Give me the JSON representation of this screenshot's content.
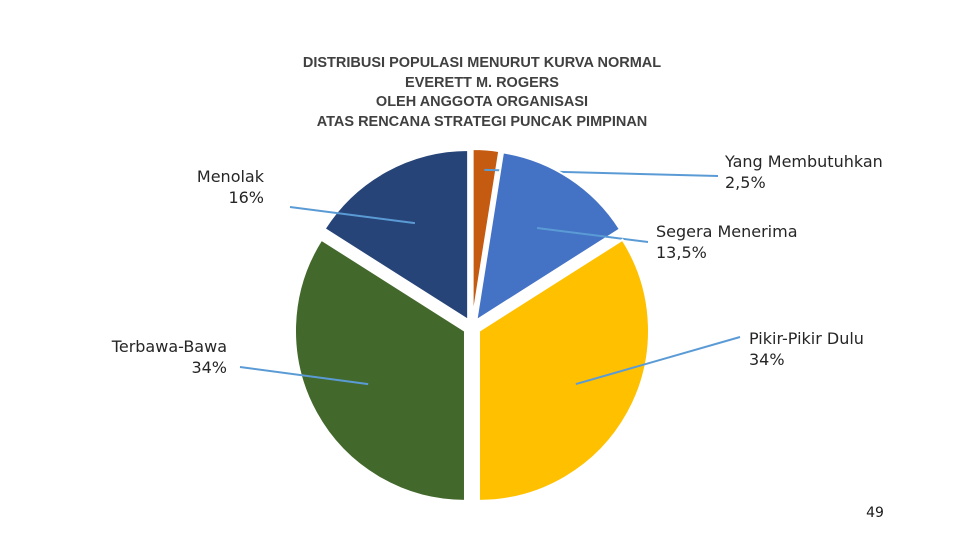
{
  "chart_data": {
    "type": "pie",
    "title_lines": [
      "DISTRIBUSI POPULASI MENURUT KURVA NORMAL",
      "EVERETT M. ROGERS",
      "OLEH ANGGOTA ORGANISASI",
      "ATAS RENCANA STRATEGI PUNCAK PIMPINAN"
    ],
    "slices": [
      {
        "name": "Yang Membutuhkan",
        "value": 2.5,
        "pct_label": "2,5%",
        "color": "#c55a11"
      },
      {
        "name": "Segera Menerima",
        "value": 13.5,
        "pct_label": "13,5%",
        "color": "#4472c4"
      },
      {
        "name": "Pikir-Pikir Dulu",
        "value": 34,
        "pct_label": "34%",
        "color": "#ffc000"
      },
      {
        "name": "Terbawa-Bawa",
        "value": 34,
        "pct_label": "34%",
        "color": "#43682b"
      },
      {
        "name": "Menolak",
        "value": 16,
        "pct_label": "16%",
        "color": "#264478"
      }
    ],
    "leader_line_color": "#5b9bd5",
    "exploded": true
  },
  "page_number": "49"
}
